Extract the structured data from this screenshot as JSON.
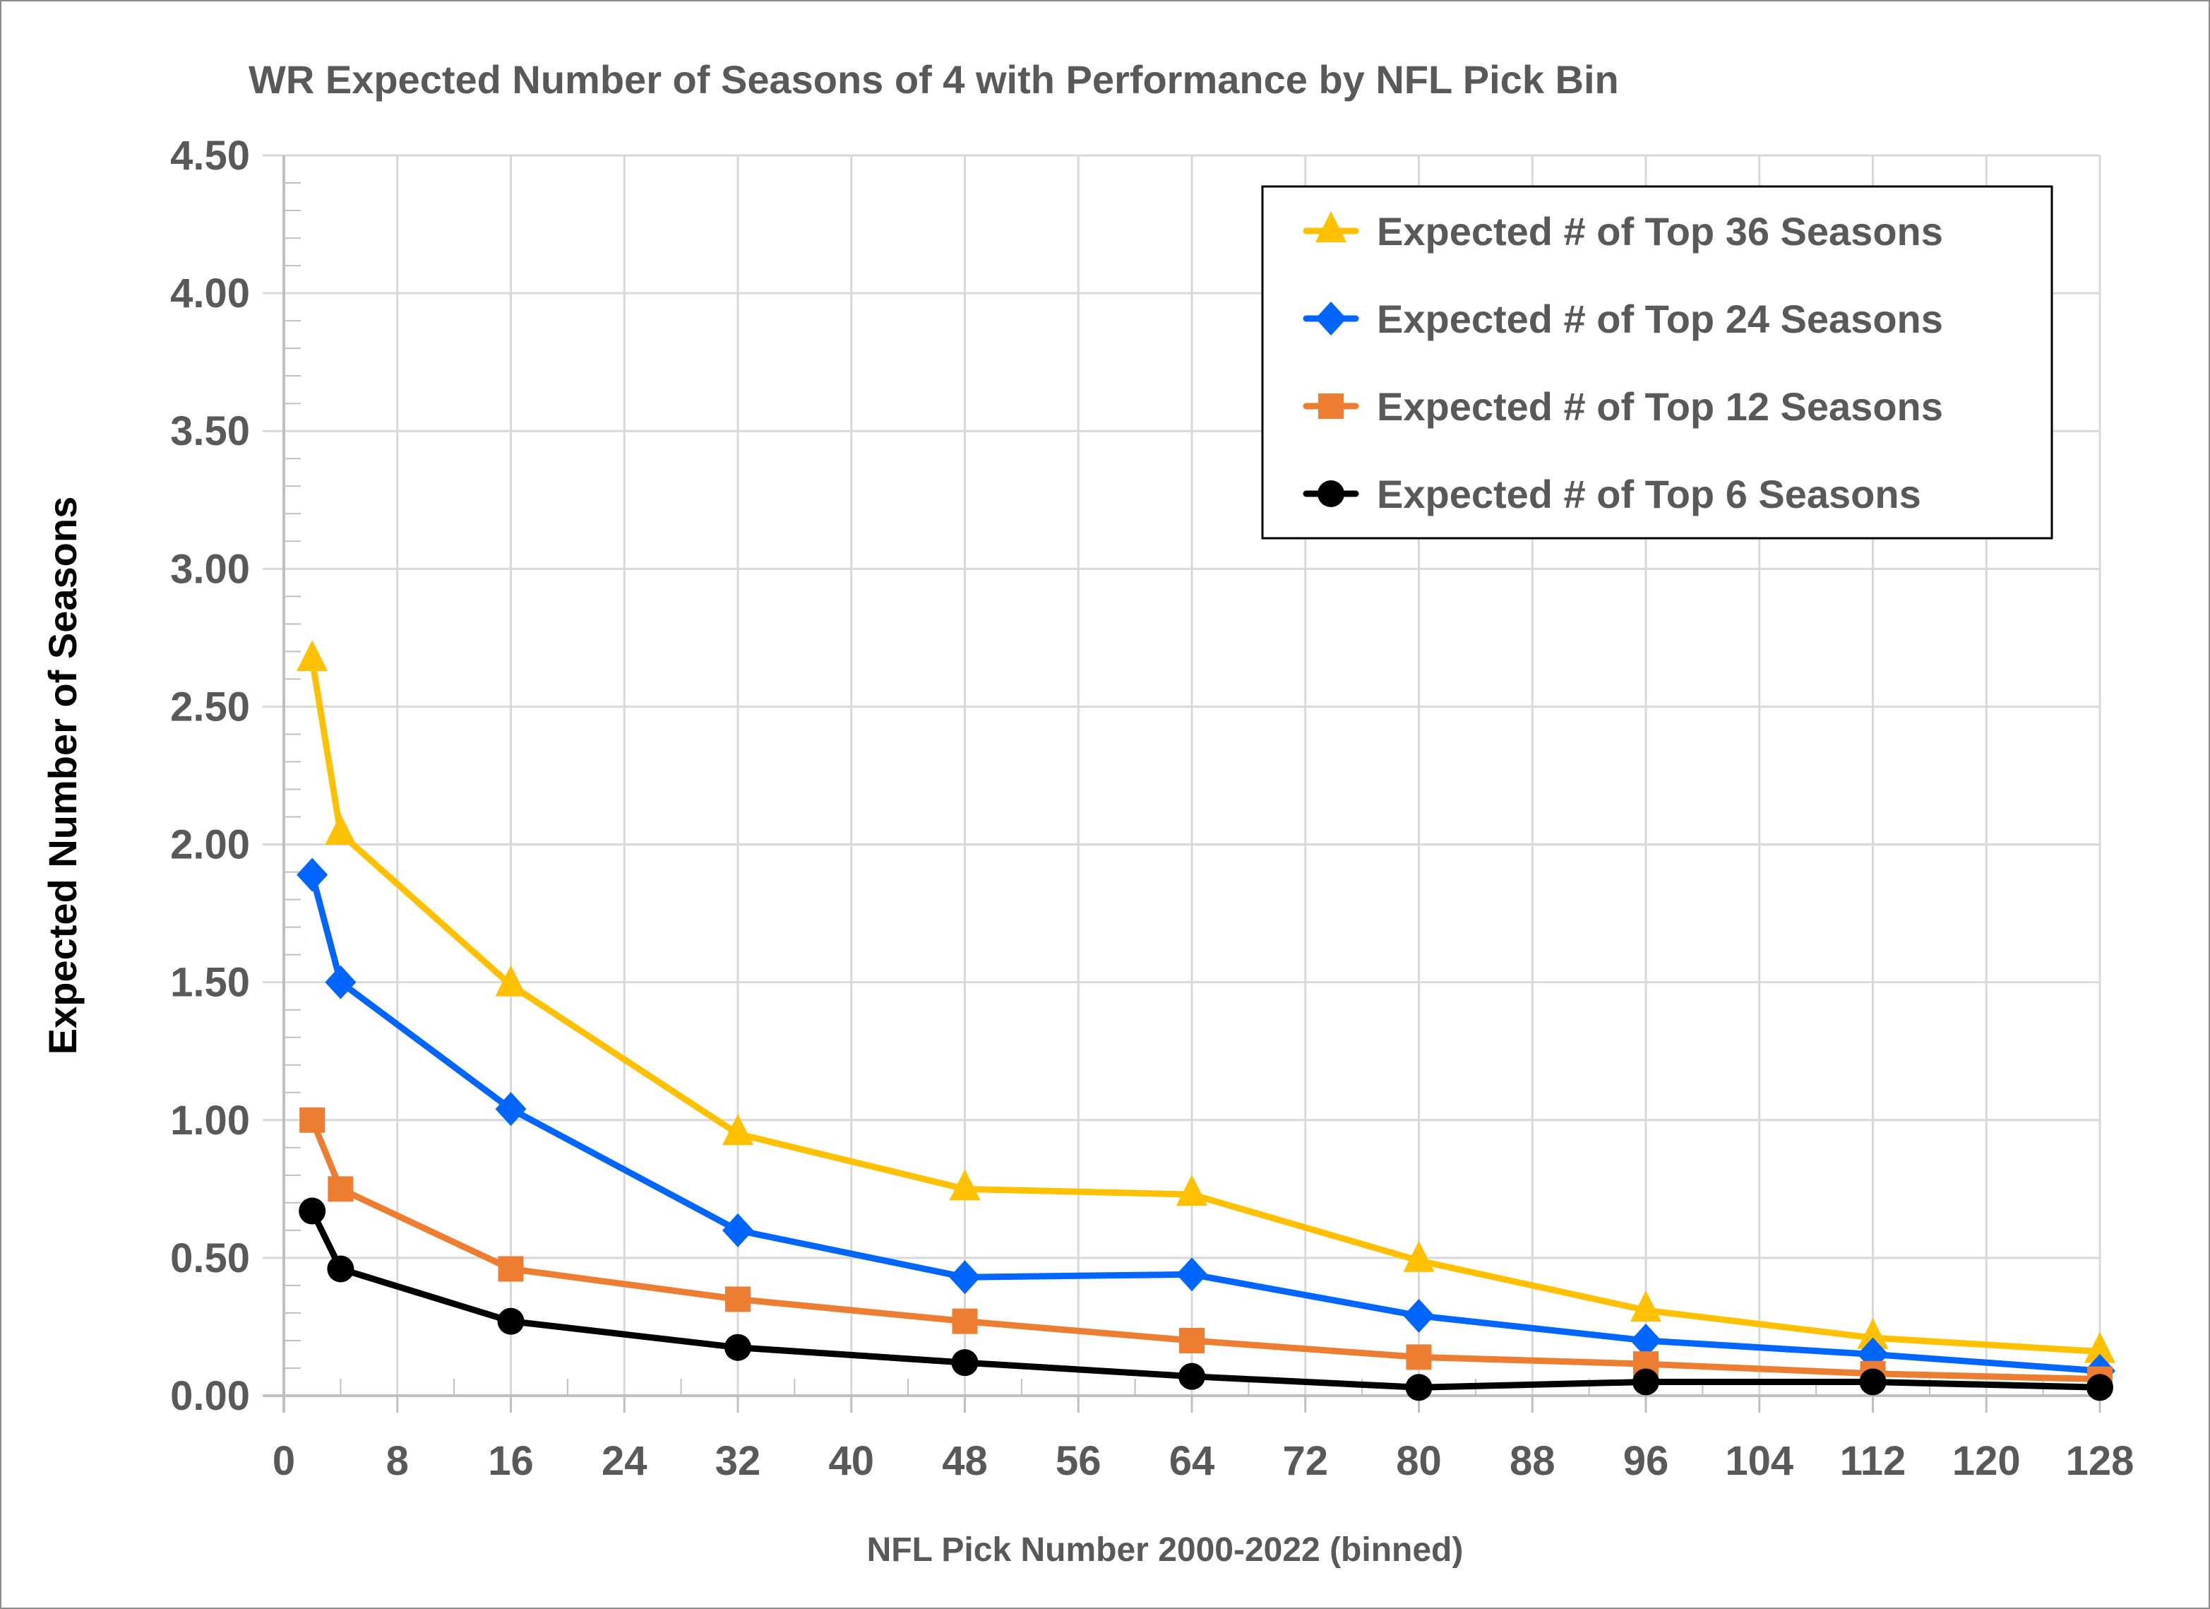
{
  "chart_data": {
    "type": "line",
    "title": "WR Expected Number of Seasons of 4 with Performance by NFL Pick Bin",
    "xlabel": "NFL Pick Number 2000-2022 (binned)",
    "ylabel": "Expected Number of Seasons",
    "xlim": [
      0,
      128
    ],
    "ylim": [
      0,
      4.5
    ],
    "x_ticks": [
      0,
      8,
      16,
      24,
      32,
      40,
      48,
      56,
      64,
      72,
      80,
      88,
      96,
      104,
      112,
      120,
      128
    ],
    "x_tick_labels": [
      "0",
      "8",
      "16",
      "24",
      "32",
      "40",
      "48",
      "56",
      "64",
      "72",
      "80",
      "88",
      "96",
      "104",
      "112",
      "120",
      "128"
    ],
    "y_ticks": [
      0,
      0.5,
      1.0,
      1.5,
      2.0,
      2.5,
      3.0,
      3.5,
      4.0,
      4.5
    ],
    "y_tick_labels": [
      "0.00",
      "0.50",
      "1.00",
      "1.50",
      "2.00",
      "2.50",
      "3.00",
      "3.50",
      "4.00",
      "4.50"
    ],
    "grid": true,
    "legend_position": "top-right",
    "x": [
      2,
      4,
      16,
      32,
      48,
      64,
      80,
      96,
      112,
      128
    ],
    "series": [
      {
        "name": "Expected # of Top 36 Seasons",
        "color": "#ffc000",
        "marker": "triangle",
        "values": [
          2.67,
          2.04,
          1.49,
          0.95,
          0.75,
          0.73,
          0.49,
          0.31,
          0.21,
          0.16
        ]
      },
      {
        "name": "Expected # of Top 24 Seasons",
        "color": "#0066ff",
        "marker": "diamond",
        "values": [
          1.89,
          1.5,
          1.04,
          0.6,
          0.43,
          0.44,
          0.29,
          0.2,
          0.15,
          0.09
        ]
      },
      {
        "name": "Expected # of Top 12 Seasons",
        "color": "#ed7d31",
        "marker": "square",
        "values": [
          1.0,
          0.75,
          0.46,
          0.35,
          0.27,
          0.2,
          0.14,
          0.115,
          0.08,
          0.06
        ]
      },
      {
        "name": "Expected # of Top 6 Seasons",
        "color": "#000000",
        "marker": "circle",
        "values": [
          0.67,
          0.46,
          0.27,
          0.175,
          0.12,
          0.07,
          0.03,
          0.05,
          0.05,
          0.03
        ]
      }
    ]
  }
}
